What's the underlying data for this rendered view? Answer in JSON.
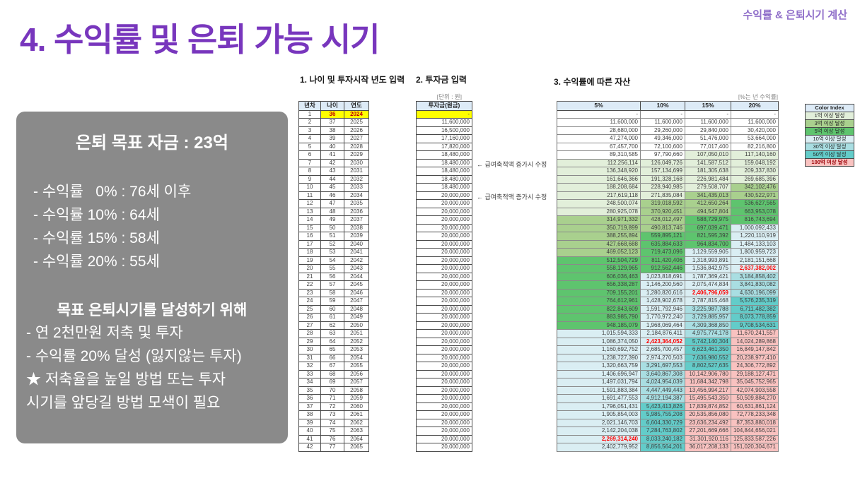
{
  "slide": {
    "title": "4. 수익률 및 은퇴 가능 시기",
    "corner_note": "수익률 & 은퇴시기 계산"
  },
  "summary_box": {
    "title": "은퇴 목표 자금 : 23억",
    "rate_lines": [
      "- 수익률   0% : 76세 이후",
      "- 수익률 10% : 64세",
      "- 수익률 15% : 58세",
      "- 수익률 20% : 55세"
    ],
    "goal_title": "목표 은퇴시기를 달성하기 위해",
    "goal_lines": [
      "- 연 2천만원 저축 및 투자",
      "- 수익률 20% 달성 (잃지않는 투자)",
      "★ 저축율을 높일 방법 또는 투자",
      "시기를 앞당길 방법 모색이 필요"
    ]
  },
  "sections": {
    "s1": "1. 나이 및 투자시작 년도 입력",
    "s2": "2. 투자금 입력",
    "s3": "3. 수익률에 따른 자산"
  },
  "age_table": {
    "headers": [
      "년차",
      "나이",
      "연도"
    ],
    "rows": [
      [
        "1",
        "36",
        "2024"
      ],
      [
        "2",
        "37",
        "2025"
      ],
      [
        "3",
        "38",
        "2026"
      ],
      [
        "4",
        "39",
        "2027"
      ],
      [
        "5",
        "40",
        "2028"
      ],
      [
        "6",
        "41",
        "2029"
      ],
      [
        "7",
        "42",
        "2030"
      ],
      [
        "8",
        "43",
        "2031"
      ],
      [
        "9",
        "44",
        "2032"
      ],
      [
        "10",
        "45",
        "2033"
      ],
      [
        "11",
        "46",
        "2034"
      ],
      [
        "12",
        "47",
        "2035"
      ],
      [
        "13",
        "48",
        "2036"
      ],
      [
        "14",
        "49",
        "2037"
      ],
      [
        "15",
        "50",
        "2038"
      ],
      [
        "16",
        "51",
        "2039"
      ],
      [
        "17",
        "52",
        "2040"
      ],
      [
        "18",
        "53",
        "2041"
      ],
      [
        "19",
        "54",
        "2042"
      ],
      [
        "20",
        "55",
        "2043"
      ],
      [
        "21",
        "56",
        "2044"
      ],
      [
        "22",
        "57",
        "2045"
      ],
      [
        "23",
        "58",
        "2046"
      ],
      [
        "24",
        "59",
        "2047"
      ],
      [
        "25",
        "60",
        "2048"
      ],
      [
        "26",
        "61",
        "2049"
      ],
      [
        "27",
        "62",
        "2050"
      ],
      [
        "28",
        "63",
        "2051"
      ],
      [
        "29",
        "64",
        "2052"
      ],
      [
        "30",
        "65",
        "2053"
      ],
      [
        "31",
        "66",
        "2054"
      ],
      [
        "32",
        "67",
        "2055"
      ],
      [
        "33",
        "68",
        "2056"
      ],
      [
        "34",
        "69",
        "2057"
      ],
      [
        "35",
        "70",
        "2058"
      ],
      [
        "36",
        "71",
        "2059"
      ],
      [
        "37",
        "72",
        "2060"
      ],
      [
        "38",
        "73",
        "2061"
      ],
      [
        "39",
        "74",
        "2062"
      ],
      [
        "40",
        "75",
        "2063"
      ],
      [
        "41",
        "76",
        "2064"
      ],
      [
        "42",
        "77",
        "2065"
      ]
    ]
  },
  "invest_table": {
    "unit_note": "[단위 : 원]",
    "header": "투자금(원금)",
    "values": [
      "-",
      "11,600,000",
      "16,500,000",
      "17,160,000",
      "17,820,000",
      "18,480,000",
      "18,480,000",
      "18,480,000",
      "18,480,000",
      "18,480,000",
      "20,000,000",
      "20,000,000",
      "20,000,000",
      "20,000,000",
      "20,000,000",
      "20,000,000",
      "20,000,000",
      "20,000,000",
      "20,000,000",
      "20,000,000",
      "20,000,000",
      "20,000,000",
      "20,000,000",
      "20,000,000",
      "20,000,000",
      "20,000,000",
      "20,000,000",
      "20,000,000",
      "20,000,000",
      "20,000,000",
      "20,000,000",
      "20,000,000",
      "20,000,000",
      "20,000,000",
      "20,000,000",
      "20,000,000",
      "20,000,000",
      "20,000,000",
      "20,000,000",
      "20,000,000",
      "20,000,000",
      "20,000,000"
    ],
    "annotations": [
      {
        "row": 7,
        "text": "← 급여축적액 증가시 수정"
      },
      {
        "row": 11,
        "text": "← 급여축적액 증가시 수정"
      }
    ]
  },
  "asset_table": {
    "unit_note": "[%는 년 수익률]",
    "headers": [
      "5%",
      "10%",
      "15%",
      "20%"
    ],
    "rows": [
      [
        "-",
        "-",
        "-",
        "-"
      ],
      [
        "11,600,000",
        "11,600,000",
        "11,600,000",
        "11,600,000"
      ],
      [
        "28,680,000",
        "29,260,000",
        "29,840,000",
        "30,420,000"
      ],
      [
        "47,274,000",
        "49,346,000",
        "51,476,000",
        "53,664,000"
      ],
      [
        "67,457,700",
        "72,100,600",
        "77,017,400",
        "82,216,800"
      ],
      [
        "89,310,585",
        "97,790,660",
        "107,050,010",
        "117,140,160"
      ],
      [
        "112,256,114",
        "126,049,726",
        "141,587,512",
        "159,048,192"
      ],
      [
        "136,348,920",
        "157,134,699",
        "181,305,638",
        "209,337,830"
      ],
      [
        "161,646,366",
        "191,328,168",
        "226,981,484",
        "269,685,396"
      ],
      [
        "188,208,684",
        "228,940,985",
        "279,508,707",
        "342,102,476"
      ],
      [
        "217,619,118",
        "271,835,084",
        "341,435,013",
        "430,522,971"
      ],
      [
        "248,500,074",
        "319,018,592",
        "412,650,264",
        "536,627,565"
      ],
      [
        "280,925,078",
        "370,920,451",
        "494,547,804",
        "663,953,078"
      ],
      [
        "314,971,332",
        "428,012,497",
        "588,729,975",
        "816,743,694"
      ],
      [
        "350,719,899",
        "490,813,746",
        "697,039,471",
        "1,000,092,433"
      ],
      [
        "388,255,894",
        "559,895,121",
        "821,595,392",
        "1,220,110,919"
      ],
      [
        "427,668,688",
        "635,884,633",
        "964,834,700",
        "1,484,133,103"
      ],
      [
        "469,052,123",
        "719,473,096",
        "1,129,559,905",
        "1,800,959,723"
      ],
      [
        "512,504,729",
        "811,420,406",
        "1,318,993,891",
        "2,181,151,668"
      ],
      [
        "558,129,965",
        "912,562,446",
        "1,536,842,975",
        "2,637,382,002"
      ],
      [
        "606,036,463",
        "1,023,818,691",
        "1,787,369,421",
        "3,184,858,402"
      ],
      [
        "656,338,287",
        "1,146,200,560",
        "2,075,474,834",
        "3,841,830,082"
      ],
      [
        "709,155,201",
        "1,280,820,616",
        "2,406,796,059",
        "4,630,196,099"
      ],
      [
        "764,612,961",
        "1,428,902,678",
        "2,787,815,468",
        "5,576,235,319"
      ],
      [
        "822,843,609",
        "1,591,792,946",
        "3,225,987,788",
        "6,711,482,382"
      ],
      [
        "883,985,790",
        "1,770,972,240",
        "3,729,885,957",
        "8,073,778,859"
      ],
      [
        "948,185,079",
        "1,968,069,464",
        "4,309,368,850",
        "9,708,534,631"
      ],
      [
        "1,015,594,333",
        "2,184,876,411",
        "4,975,774,178",
        "11,670,241,557"
      ],
      [
        "1,086,374,050",
        "2,423,364,052",
        "5,742,140,304",
        "14,024,289,868"
      ],
      [
        "1,160,692,752",
        "2,685,700,457",
        "6,623,461,350",
        "16,849,147,842"
      ],
      [
        "1,238,727,390",
        "2,974,270,503",
        "7,636,980,552",
        "20,238,977,410"
      ],
      [
        "1,320,663,759",
        "3,291,697,553",
        "8,802,527,635",
        "24,306,772,892"
      ],
      [
        "1,406,696,947",
        "3,640,867,308",
        "10,142,906,780",
        "29,188,127,471"
      ],
      [
        "1,497,031,794",
        "4,024,954,039",
        "11,684,342,798",
        "35,045,752,965"
      ],
      [
        "1,591,883,384",
        "4,447,449,443",
        "13,456,994,217",
        "42,074,903,558"
      ],
      [
        "1,691,477,553",
        "4,912,194,387",
        "15,495,543,350",
        "50,509,884,270"
      ],
      [
        "1,796,051,431",
        "5,423,413,826",
        "17,839,874,852",
        "60,631,861,124"
      ],
      [
        "1,905,854,003",
        "5,985,755,208",
        "20,535,856,080",
        "72,778,233,348"
      ],
      [
        "2,021,146,703",
        "6,604,330,729",
        "23,636,234,492",
        "87,353,880,018"
      ],
      [
        "2,142,204,038",
        "7,284,763,802",
        "27,201,669,666",
        "104,844,656,021"
      ],
      [
        "2,269,314,240",
        "8,033,240,182",
        "31,301,920,116",
        "125,833,587,226"
      ],
      [
        "2,402,779,952",
        "8,856,564,201",
        "36,017,208,133",
        "151,020,304,671"
      ]
    ],
    "red_cells": [
      {
        "row": 41,
        "col": 1
      },
      {
        "row": 29,
        "col": 2
      },
      {
        "row": 23,
        "col": 3
      },
      {
        "row": 20,
        "col": 4
      }
    ]
  },
  "color_index": {
    "title": "Color Index",
    "items": [
      {
        "label": "1억 이상 달성",
        "color": "#E2EFDA",
        "threshold": 100000000
      },
      {
        "label": "3억 이상 달성",
        "color": "#A9D08E",
        "threshold": 300000000
      },
      {
        "label": "5억 이상 달성",
        "color": "#5EC46E",
        "threshold": 500000000
      },
      {
        "label": "10억 이상 달성",
        "color": "#DAEEF3",
        "threshold": 1000000000
      },
      {
        "label": "30억 이상 달성",
        "color": "#A9DEE2",
        "threshold": 3000000000
      },
      {
        "label": "50억 이상 달성",
        "color": "#63CCC9",
        "threshold": 5000000000
      },
      {
        "label": "100억 이상 달성",
        "color": "#F9C2C0",
        "threshold": 10000000000
      }
    ]
  },
  "colors": {
    "title_purple": "#7836bd",
    "corner_purple": "#8f6ec9",
    "box_gray": "#8a8a8a",
    "header_blue": "#DDEBF7",
    "input_yellow": "#FFFF00",
    "target_red": "#FF0000"
  }
}
